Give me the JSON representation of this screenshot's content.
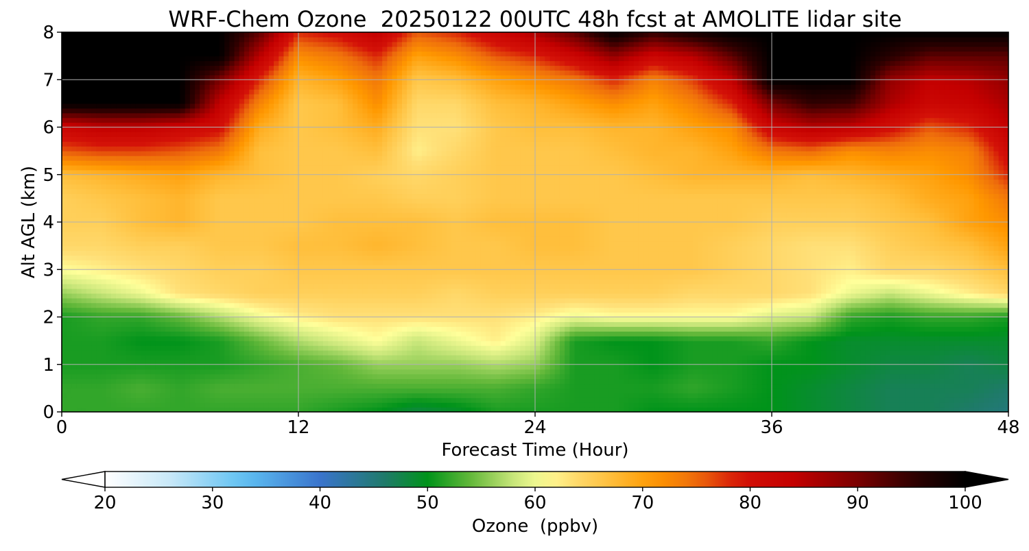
{
  "chart_data": {
    "type": "heatmap",
    "title": "WRF-Chem Ozone  20250122 00UTC 48h fcst at AMOLITE lidar site",
    "xlabel": "Forecast Time (Hour)",
    "ylabel": "Alt AGL (km)",
    "xlim": [
      0,
      48
    ],
    "ylim": [
      0,
      8
    ],
    "xticks": [
      0,
      12,
      24,
      36,
      48
    ],
    "yticks": [
      0,
      1,
      2,
      3,
      4,
      5,
      6,
      7,
      8
    ],
    "grid": true,
    "x": [
      0,
      2,
      4,
      6,
      8,
      10,
      12,
      14,
      16,
      18,
      20,
      22,
      24,
      26,
      28,
      30,
      32,
      34,
      36,
      38,
      40,
      42,
      44,
      46,
      48
    ],
    "y": [
      0,
      0.5,
      1,
      1.5,
      2,
      2.5,
      3,
      3.5,
      4,
      4.5,
      5,
      5.5,
      6,
      6.5,
      7,
      7.5,
      8
    ],
    "z": [
      [
        52,
        52,
        52,
        52,
        52,
        52,
        52,
        51,
        50,
        48,
        49,
        51,
        51,
        51,
        51,
        50,
        50,
        50,
        50,
        49,
        48,
        47,
        47,
        46,
        45
      ],
      [
        52,
        52,
        53,
        52,
        53,
        53,
        53,
        53,
        53,
        53,
        53,
        53,
        52,
        51,
        51,
        51,
        52,
        51,
        50,
        49,
        48,
        47,
        47,
        47,
        46
      ],
      [
        51,
        51,
        51,
        51,
        51,
        52,
        53,
        54,
        56,
        56,
        56,
        57,
        56,
        51,
        51,
        50,
        51,
        51,
        50,
        50,
        49,
        48,
        48,
        47,
        48
      ],
      [
        51,
        51,
        50,
        50,
        51,
        54,
        57,
        59,
        61,
        58,
        60,
        62,
        59,
        51,
        50,
        50,
        51,
        51,
        52,
        50,
        49,
        49,
        49,
        49,
        49
      ],
      [
        51,
        52,
        52,
        54,
        57,
        60,
        62,
        63,
        63,
        63,
        63,
        63,
        62,
        60,
        61,
        61,
        61,
        61,
        59,
        58,
        52,
        51,
        52,
        52,
        51
      ],
      [
        56,
        58,
        60,
        63,
        64,
        65,
        65,
        65,
        65,
        65,
        64,
        65,
        65,
        65,
        65,
        65,
        64,
        64,
        64,
        63,
        60,
        58,
        60,
        62,
        64
      ],
      [
        61,
        62,
        63,
        64,
        65,
        65,
        66,
        66,
        66,
        66,
        66,
        66,
        66,
        66,
        66,
        66,
        66,
        65,
        64,
        63,
        62,
        64,
        64,
        65,
        67
      ],
      [
        64,
        64,
        65,
        65,
        66,
        66,
        67,
        67,
        68,
        67,
        66,
        66,
        67,
        67,
        66,
        66,
        66,
        65,
        64,
        63,
        63,
        65,
        66,
        67,
        70
      ],
      [
        65,
        65,
        67,
        68,
        66,
        66,
        66,
        67,
        67,
        67,
        66,
        67,
        67,
        67,
        66,
        66,
        66,
        66,
        65,
        65,
        65,
        66,
        67,
        70,
        72
      ],
      [
        65,
        66,
        67,
        68,
        66,
        66,
        66,
        66,
        66,
        65,
        65,
        66,
        66,
        66,
        66,
        66,
        66,
        66,
        66,
        66,
        66,
        67,
        69,
        70,
        74
      ],
      [
        67,
        68,
        69,
        70,
        68,
        67,
        66,
        66,
        65,
        64,
        65,
        66,
        66,
        66,
        66,
        67,
        68,
        68,
        68,
        67,
        68,
        69,
        70,
        72,
        78
      ],
      [
        76,
        77,
        77,
        76,
        74,
        67,
        66,
        66,
        67,
        62,
        64,
        66,
        66,
        66,
        67,
        68,
        68,
        70,
        74,
        75,
        72,
        73,
        72,
        73,
        81
      ],
      [
        82,
        84,
        84,
        82,
        80,
        69,
        66,
        67,
        69,
        63,
        63,
        66,
        67,
        67,
        68,
        68,
        70,
        72,
        82,
        85,
        84,
        80,
        76,
        78,
        84
      ],
      [
        100,
        100,
        100,
        100,
        84,
        73,
        66,
        67,
        72,
        64,
        64,
        67,
        68,
        70,
        72,
        70,
        73,
        78,
        90,
        95,
        94,
        86,
        82,
        83,
        86
      ],
      [
        100,
        100,
        100,
        100,
        90,
        78,
        68,
        70,
        74,
        66,
        67,
        70,
        72,
        74,
        78,
        73,
        77,
        84,
        100,
        100,
        100,
        88,
        84,
        85,
        88
      ],
      [
        100,
        100,
        100,
        100,
        100,
        85,
        72,
        74,
        78,
        70,
        72,
        76,
        78,
        82,
        88,
        82,
        85,
        92,
        100,
        100,
        100,
        96,
        92,
        92,
        92
      ],
      [
        100,
        100,
        100,
        100,
        100,
        92,
        78,
        80,
        84,
        76,
        78,
        82,
        86,
        92,
        100,
        95,
        98,
        100,
        100,
        100,
        100,
        100,
        100,
        100,
        100
      ]
    ],
    "colorbar": {
      "label": "Ozone  (ppbv)",
      "range": [
        20,
        100
      ],
      "ticks": [
        20,
        30,
        40,
        50,
        60,
        70,
        80,
        90,
        100
      ],
      "extend": "both",
      "orientation": "horizontal"
    },
    "colormap": [
      [
        20,
        "#ffffff"
      ],
      [
        26,
        "#c8e8f8"
      ],
      [
        33,
        "#5ec0f2"
      ],
      [
        40,
        "#3a74cc"
      ],
      [
        46,
        "#1f7a6a"
      ],
      [
        50,
        "#00931a"
      ],
      [
        54,
        "#63b83a"
      ],
      [
        58,
        "#c8e67a"
      ],
      [
        61,
        "#ffff9a"
      ],
      [
        63,
        "#ffe078"
      ],
      [
        67,
        "#ffbf3c"
      ],
      [
        71,
        "#ff9800"
      ],
      [
        75,
        "#ee6d0c"
      ],
      [
        79,
        "#d41208"
      ],
      [
        84,
        "#c40000"
      ],
      [
        90,
        "#7a0000"
      ],
      [
        95,
        "#300000"
      ],
      [
        100,
        "#000000"
      ]
    ]
  }
}
